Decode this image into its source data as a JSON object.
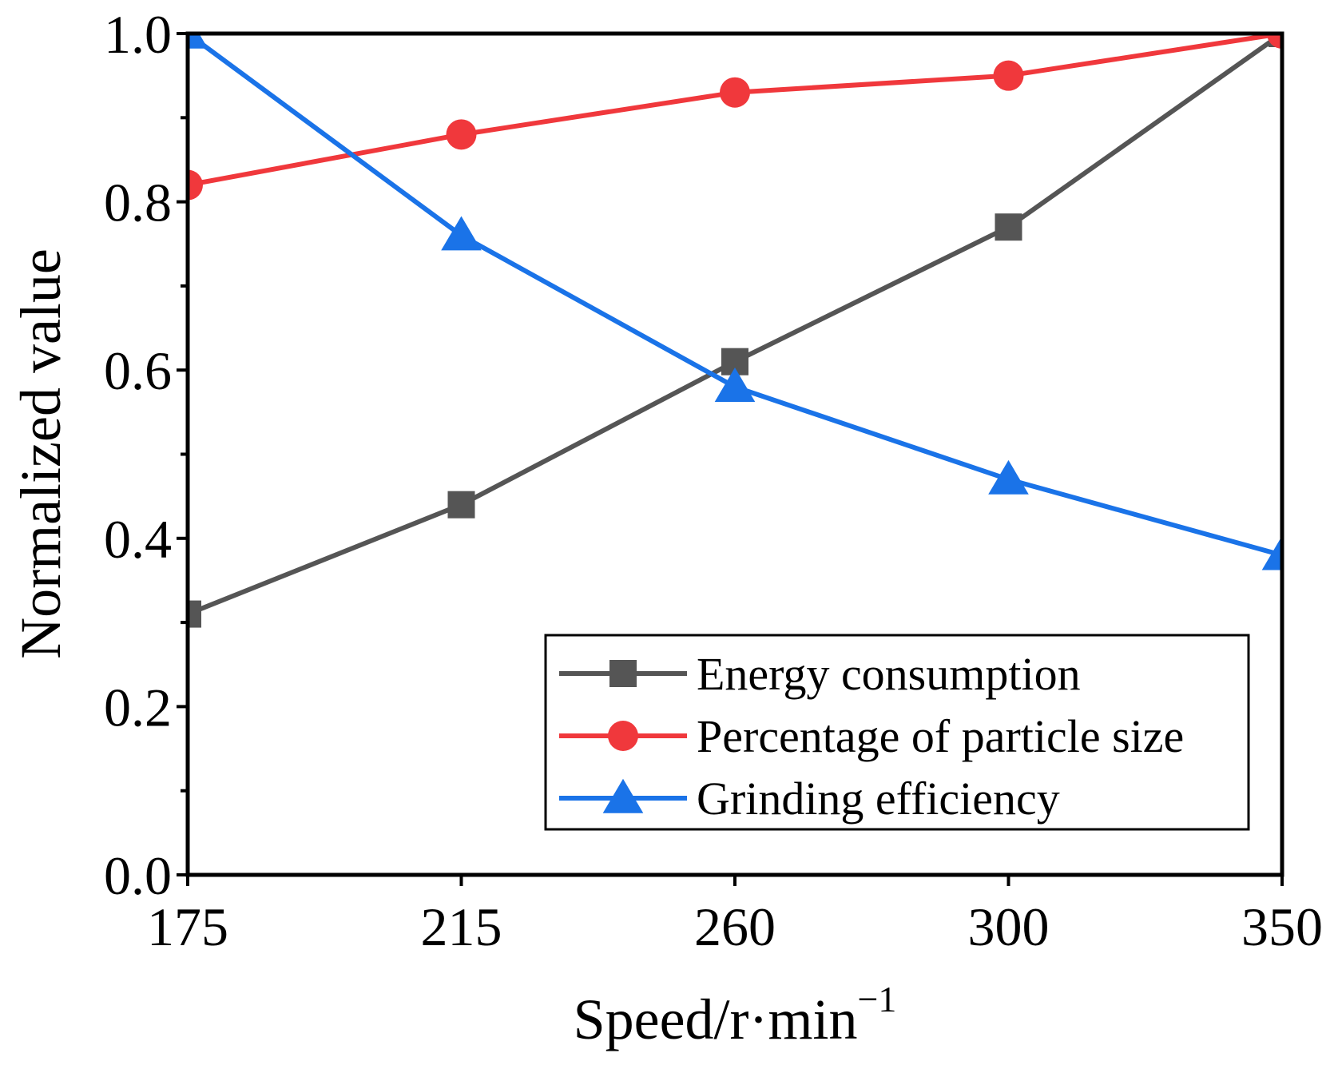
{
  "chart_data": {
    "type": "line",
    "title": "",
    "xlabel": "Speed/r·min",
    "xlabel_superscript": "−1",
    "ylabel": "Normalized value",
    "categories": [
      "175",
      "215",
      "260",
      "300",
      "350"
    ],
    "ylim": [
      0.0,
      1.0
    ],
    "yticks": [
      "0.0",
      "0.2",
      "0.4",
      "0.6",
      "0.8",
      "1.0"
    ],
    "grid": false,
    "legend_position": "bottom-right",
    "series": [
      {
        "name": "Energy consumption",
        "marker": "square",
        "color": "#555555",
        "values": [
          0.31,
          0.44,
          0.61,
          0.77,
          1.0
        ]
      },
      {
        "name": "Percentage of particle size",
        "marker": "circle",
        "color": "#f0383c",
        "values": [
          0.82,
          0.88,
          0.93,
          0.95,
          1.0
        ]
      },
      {
        "name": "Grinding efficiency",
        "marker": "triangle",
        "color": "#1a73e8",
        "values": [
          1.0,
          0.76,
          0.58,
          0.47,
          0.38
        ]
      }
    ]
  }
}
